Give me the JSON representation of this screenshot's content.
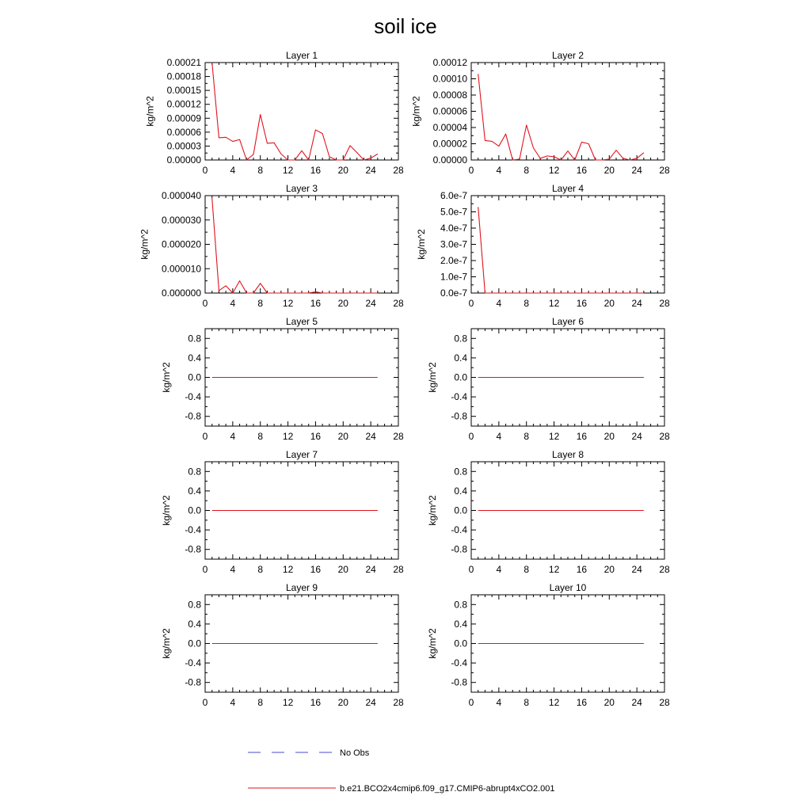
{
  "figure": {
    "title": "soil ice"
  },
  "legend": {
    "items": [
      {
        "label": "No Obs",
        "color": "#4a4ad0",
        "style": "dashed"
      },
      {
        "label": "b.e21.BCO2x4cmip6.f09_g17.CMIP6-abrupt4xCO2.001",
        "color": "#e0141e",
        "style": "solid"
      }
    ]
  },
  "chart_data": [
    {
      "type": "line",
      "title": "Layer 1",
      "ylabel": "kg/m^2",
      "xlim": [
        0,
        28
      ],
      "xticks": [
        0,
        4,
        8,
        12,
        16,
        20,
        24,
        28
      ],
      "ylim": [
        0,
        0.00021
      ],
      "yticks": [
        0,
        3e-05,
        6e-05,
        9e-05,
        0.00012,
        0.00015,
        0.00018,
        0.00021
      ],
      "yticklabels": [
        "0.00000",
        "0.00003",
        "0.00006",
        "0.00009",
        "0.00012",
        "0.00015",
        "0.00018",
        "0.00021"
      ],
      "series": [
        {
          "color": "#e0141e",
          "x": [
            1,
            2,
            3,
            4,
            5,
            6,
            7,
            8,
            9,
            10,
            11,
            12,
            13,
            14,
            15,
            16,
            17,
            18,
            19,
            20,
            21,
            22,
            23,
            24,
            25
          ],
          "y": [
            0.00021,
            4.8e-05,
            4.9e-05,
            4e-05,
            4.4e-05,
            0.0,
            1.2e-05,
            9.8e-05,
            3.6e-05,
            3.7e-05,
            1.3e-05,
            0.0,
            0.0,
            2e-05,
            0.0,
            6.5e-05,
            5.7e-05,
            7e-06,
            0.0,
            0.0,
            3.1e-05,
            1.6e-05,
            0.0,
            4e-06,
            1.3e-05
          ]
        }
      ]
    },
    {
      "type": "line",
      "title": "Layer 2",
      "ylabel": "kg/m^2",
      "xlim": [
        0,
        28
      ],
      "xticks": [
        0,
        4,
        8,
        12,
        16,
        20,
        24,
        28
      ],
      "ylim": [
        0,
        0.00012
      ],
      "yticks": [
        0,
        2e-05,
        4e-05,
        6e-05,
        8e-05,
        0.0001,
        0.00012
      ],
      "yticklabels": [
        "0.00000",
        "0.00002",
        "0.00004",
        "0.00006",
        "0.00008",
        "0.00010",
        "0.00012"
      ],
      "series": [
        {
          "color": "#e0141e",
          "x": [
            1,
            2,
            3,
            4,
            5,
            6,
            7,
            8,
            9,
            10,
            11,
            12,
            13,
            14,
            15,
            16,
            17,
            18,
            19,
            20,
            21,
            22,
            23,
            24,
            25
          ],
          "y": [
            0.000106,
            2.4e-05,
            2.3e-05,
            1.7e-05,
            3.2e-05,
            0.0,
            1e-06,
            4.3e-05,
            1.5e-05,
            2e-06,
            5e-06,
            4e-06,
            0.0,
            1.1e-05,
            0.0,
            2.2e-05,
            2e-05,
            0.0,
            0.0,
            1e-06,
            1.2e-05,
            2e-06,
            0.0,
            2e-06,
            9e-06
          ]
        }
      ]
    },
    {
      "type": "line",
      "title": "Layer 3",
      "ylabel": "kg/m^2",
      "xlim": [
        0,
        28
      ],
      "xticks": [
        0,
        4,
        8,
        12,
        16,
        20,
        24,
        28
      ],
      "ylim": [
        0,
        4e-05
      ],
      "yticks": [
        0,
        1e-05,
        2e-05,
        3e-05,
        4e-05
      ],
      "yticklabels": [
        "0.000000",
        "0.000010",
        "0.000020",
        "0.000030",
        "0.000040"
      ],
      "series": [
        {
          "color": "#e0141e",
          "x": [
            1,
            2,
            3,
            4,
            5,
            6,
            7,
            8,
            9,
            10,
            11,
            12,
            13,
            14,
            15,
            16,
            17,
            18,
            19,
            20,
            21,
            22,
            23,
            24,
            25
          ],
          "y": [
            3.9e-05,
            1e-06,
            3e-06,
            0.0,
            5e-06,
            0.0,
            0.0,
            4e-06,
            0.0,
            0.0,
            0.0,
            0.0,
            0.0,
            0.0,
            0.0,
            5e-07,
            0.0,
            0.0,
            0.0,
            0.0,
            0.0,
            0.0,
            0.0,
            0.0,
            0.0
          ]
        }
      ]
    },
    {
      "type": "line",
      "title": "Layer 4",
      "ylabel": "kg/m^2",
      "xlim": [
        0,
        28
      ],
      "xticks": [
        0,
        4,
        8,
        12,
        16,
        20,
        24,
        28
      ],
      "ylim": [
        0,
        6e-07
      ],
      "yticks": [
        0,
        1e-07,
        2e-07,
        3e-07,
        4e-07,
        5e-07,
        6e-07
      ],
      "yticklabels": [
        "0.0e-7",
        "1.0e-7",
        "2.0e-7",
        "3.0e-7",
        "4.0e-7",
        "5.0e-7",
        "6.0e-7"
      ],
      "series": [
        {
          "color": "#e0141e",
          "x": [
            1,
            2,
            3,
            4,
            5,
            6,
            7,
            8,
            9,
            10,
            11,
            12,
            13,
            14,
            15,
            16,
            17,
            18,
            19,
            20,
            21,
            22,
            23,
            24,
            25
          ],
          "y": [
            5.3e-07,
            0,
            0,
            0,
            0,
            0,
            0,
            0,
            0,
            0,
            0,
            0,
            0,
            0,
            0,
            0,
            0,
            0,
            0,
            0,
            0,
            0,
            0,
            0,
            0
          ]
        }
      ]
    },
    {
      "type": "line",
      "title": "Layer 5",
      "ylabel": "kg/m^2",
      "xlim": [
        0,
        28
      ],
      "xticks": [
        0,
        4,
        8,
        12,
        16,
        20,
        24,
        28
      ],
      "ylim": [
        -1,
        1
      ],
      "yticks": [
        -0.8,
        -0.4,
        0,
        0.4,
        0.8
      ],
      "yticklabels": [
        "-0.8",
        "-0.4",
        "0.0",
        "0.4",
        "0.8"
      ],
      "series": [
        {
          "color": "#e0141e",
          "x": [
            1,
            25
          ],
          "y": [
            0,
            0
          ]
        }
      ]
    },
    {
      "type": "line",
      "title": "Layer 6",
      "ylabel": "kg/m^2",
      "xlim": [
        0,
        28
      ],
      "xticks": [
        0,
        4,
        8,
        12,
        16,
        20,
        24,
        28
      ],
      "ylim": [
        -1,
        1
      ],
      "yticks": [
        -0.8,
        -0.4,
        0,
        0.4,
        0.8
      ],
      "yticklabels": [
        "-0.8",
        "-0.4",
        "0.0",
        "0.4",
        "0.8"
      ],
      "series": [
        {
          "color": "#e0141e",
          "x": [
            1,
            25
          ],
          "y": [
            0,
            0
          ]
        }
      ]
    },
    {
      "type": "line",
      "title": "Layer 7",
      "ylabel": "kg/m^2",
      "xlim": [
        0,
        28
      ],
      "xticks": [
        0,
        4,
        8,
        12,
        16,
        20,
        24,
        28
      ],
      "ylim": [
        -1,
        1
      ],
      "yticks": [
        -0.8,
        -0.4,
        0,
        0.4,
        0.8
      ],
      "yticklabels": [
        "-0.8",
        "-0.4",
        "0.0",
        "0.4",
        "0.8"
      ],
      "series": [
        {
          "color": "#e0141e",
          "x": [
            1,
            25
          ],
          "y": [
            0,
            0
          ]
        }
      ]
    },
    {
      "type": "line",
      "title": "Layer 8",
      "ylabel": "kg/m^2",
      "xlim": [
        0,
        28
      ],
      "xticks": [
        0,
        4,
        8,
        12,
        16,
        20,
        24,
        28
      ],
      "ylim": [
        -1,
        1
      ],
      "yticks": [
        -0.8,
        -0.4,
        0,
        0.4,
        0.8
      ],
      "yticklabels": [
        "-0.8",
        "-0.4",
        "0.0",
        "0.4",
        "0.8"
      ],
      "series": [
        {
          "color": "#e0141e",
          "x": [
            1,
            25
          ],
          "y": [
            0,
            0
          ]
        }
      ]
    },
    {
      "type": "line",
      "title": "Layer 9",
      "ylabel": "kg/m^2",
      "xlim": [
        0,
        28
      ],
      "xticks": [
        0,
        4,
        8,
        12,
        16,
        20,
        24,
        28
      ],
      "ylim": [
        -1,
        1
      ],
      "yticks": [
        -0.8,
        -0.4,
        0,
        0.4,
        0.8
      ],
      "yticklabels": [
        "-0.8",
        "-0.4",
        "0.0",
        "0.4",
        "0.8"
      ],
      "series": [
        {
          "color": "#e0141e",
          "x": [
            1,
            25
          ],
          "y": [
            0,
            0
          ]
        }
      ]
    },
    {
      "type": "line",
      "title": "Layer 10",
      "ylabel": "kg/m^2",
      "xlim": [
        0,
        28
      ],
      "xticks": [
        0,
        4,
        8,
        12,
        16,
        20,
        24,
        28
      ],
      "ylim": [
        -1,
        1
      ],
      "yticks": [
        -0.8,
        -0.4,
        0,
        0.4,
        0.8
      ],
      "yticklabels": [
        "-0.8",
        "-0.4",
        "0.0",
        "0.4",
        "0.8"
      ],
      "series": [
        {
          "color": "#e0141e",
          "x": [
            1,
            25
          ],
          "y": [
            0,
            0
          ]
        }
      ]
    }
  ]
}
